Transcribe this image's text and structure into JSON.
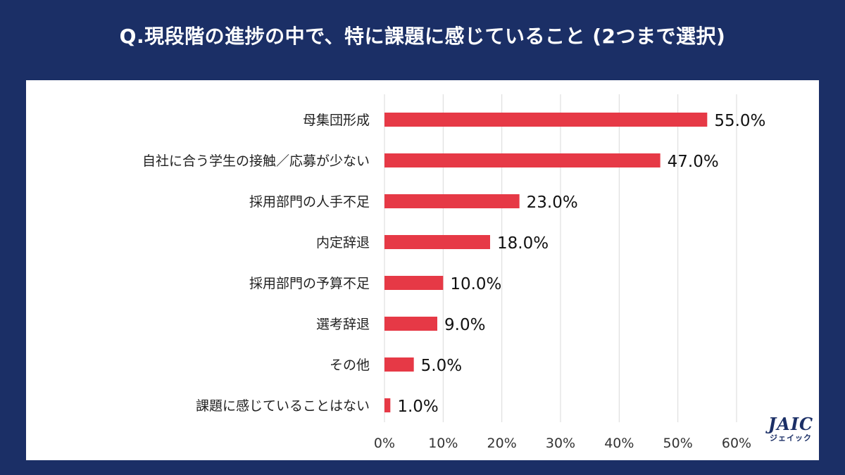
{
  "header": {
    "title": "Q.現段階の進捗の中で、特に課題に感じていること (2つまで選択)"
  },
  "logo": {
    "main": "JAIC",
    "sub": "ジェイック"
  },
  "colors": {
    "background": "#1b2f66",
    "bar": "#e63946",
    "grid": "#d9d9d9"
  },
  "chart_data": {
    "type": "bar",
    "orientation": "horizontal",
    "title": "Q.現段階の進捗の中で、特に課題に感じていること (2つまで選択)",
    "categories": [
      "母集団形成",
      "自社に合う学生の接触／応募が少ない",
      "採用部門の人手不足",
      "内定辞退",
      "採用部門の予算不足",
      "選考辞退",
      "その他",
      "課題に感じていることはない"
    ],
    "values": [
      55.0,
      47.0,
      23.0,
      18.0,
      10.0,
      9.0,
      5.0,
      1.0
    ],
    "value_labels": [
      "55.0%",
      "47.0%",
      "23.0%",
      "18.0%",
      "10.0%",
      "9.0%",
      "5.0%",
      "1.0%"
    ],
    "xlim": [
      0,
      60
    ],
    "xticks": [
      "0%",
      "10%",
      "20%",
      "30%",
      "40%",
      "50%",
      "60%"
    ],
    "xlabel": "",
    "ylabel": "",
    "grid": true
  }
}
